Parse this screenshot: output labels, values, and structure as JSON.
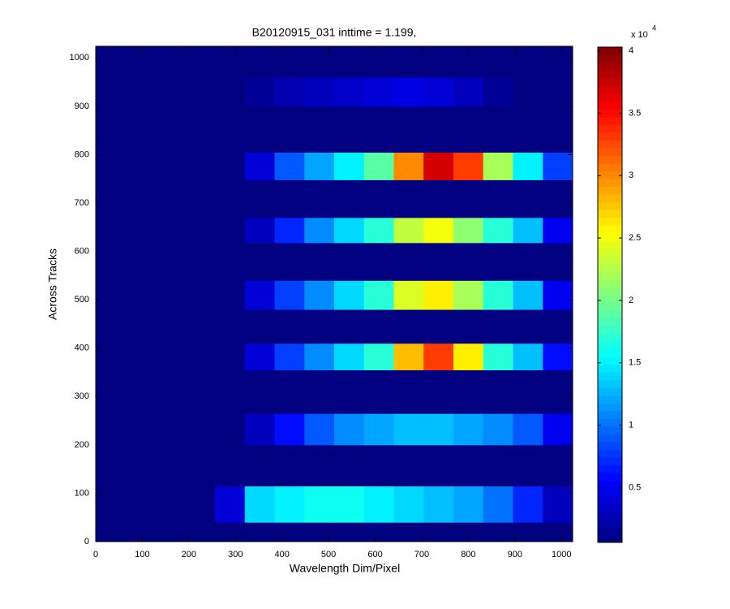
{
  "chart_data": {
    "type": "heatmap",
    "title": "B20120915_031 inttime = 1.199,",
    "x_label": "Wavelength Dim/Pixel",
    "y_label": "Across Tracks",
    "xlim": [
      0,
      1024
    ],
    "ylim": [
      0,
      1024
    ],
    "xticks": [
      0,
      100,
      200,
      300,
      400,
      500,
      600,
      700,
      800,
      900,
      1000
    ],
    "yticks": [
      0,
      100,
      200,
      300,
      400,
      500,
      600,
      700,
      800,
      900,
      1000
    ],
    "colormap": "jet",
    "clim": [
      600,
      40300
    ],
    "colorbar_ticks": [
      {
        "value": 5000,
        "label": "0.5"
      },
      {
        "value": 10000,
        "label": "1"
      },
      {
        "value": 15000,
        "label": "1.5"
      },
      {
        "value": 20000,
        "label": "2"
      },
      {
        "value": 25000,
        "label": "2.5"
      },
      {
        "value": 30000,
        "label": "3"
      },
      {
        "value": 35000,
        "label": "3.5"
      },
      {
        "value": 40000,
        "label": "4"
      }
    ],
    "colorbar_multiplier": {
      "base": "x 10",
      "power": "4"
    },
    "x_edges": [
      0,
      64,
      128,
      192,
      256,
      320,
      384,
      448,
      512,
      576,
      640,
      704,
      768,
      832,
      896,
      960,
      1024
    ],
    "y_edges": [
      0,
      40,
      115,
      200,
      265,
      355,
      410,
      480,
      540,
      618,
      670,
      748,
      805,
      900,
      960,
      1024
    ],
    "z": [
      [
        600,
        600,
        600,
        600,
        600,
        600,
        600,
        600,
        600,
        600,
        600,
        600,
        600,
        600,
        600,
        600
      ],
      [
        600,
        600,
        600,
        600,
        4000,
        14000,
        15000,
        16000,
        16000,
        15000,
        14000,
        13000,
        12000,
        10000,
        7000,
        3000
      ],
      [
        600,
        600,
        600,
        600,
        600,
        600,
        600,
        600,
        600,
        600,
        600,
        600,
        600,
        600,
        600,
        600
      ],
      [
        600,
        600,
        600,
        600,
        600,
        3000,
        6000,
        9000,
        11000,
        12000,
        13000,
        13000,
        12000,
        11000,
        9000,
        5000
      ],
      [
        600,
        600,
        600,
        600,
        600,
        600,
        600,
        600,
        600,
        600,
        600,
        600,
        600,
        600,
        600,
        600
      ],
      [
        600,
        600,
        600,
        600,
        600,
        4000,
        8000,
        11000,
        14000,
        17000,
        28000,
        33000,
        26000,
        17000,
        13000,
        6000
      ],
      [
        600,
        600,
        600,
        600,
        600,
        600,
        600,
        600,
        600,
        600,
        600,
        600,
        600,
        600,
        600,
        600
      ],
      [
        600,
        600,
        600,
        600,
        600,
        4000,
        8000,
        11000,
        14000,
        17000,
        24000,
        26000,
        22000,
        17000,
        13000,
        5000
      ],
      [
        600,
        600,
        600,
        600,
        600,
        600,
        600,
        600,
        600,
        600,
        600,
        600,
        600,
        600,
        600,
        600
      ],
      [
        600,
        600,
        600,
        600,
        600,
        3000,
        7000,
        11000,
        14000,
        17000,
        23000,
        25000,
        21000,
        17000,
        13000,
        5000
      ],
      [
        600,
        600,
        600,
        600,
        600,
        600,
        600,
        600,
        600,
        600,
        600,
        600,
        600,
        600,
        600,
        600
      ],
      [
        600,
        600,
        600,
        600,
        600,
        4000,
        9000,
        12000,
        15000,
        19000,
        30000,
        37000,
        33000,
        22000,
        15000,
        8000
      ],
      [
        600,
        600,
        600,
        600,
        600,
        600,
        600,
        600,
        600,
        600,
        600,
        600,
        600,
        600,
        600,
        600
      ],
      [
        600,
        600,
        600,
        600,
        600,
        1500,
        2500,
        3000,
        3500,
        4000,
        4500,
        4000,
        3000,
        1500,
        600,
        600
      ],
      [
        600,
        600,
        600,
        600,
        600,
        600,
        600,
        600,
        600,
        600,
        600,
        600,
        600,
        600,
        600,
        600
      ]
    ]
  }
}
